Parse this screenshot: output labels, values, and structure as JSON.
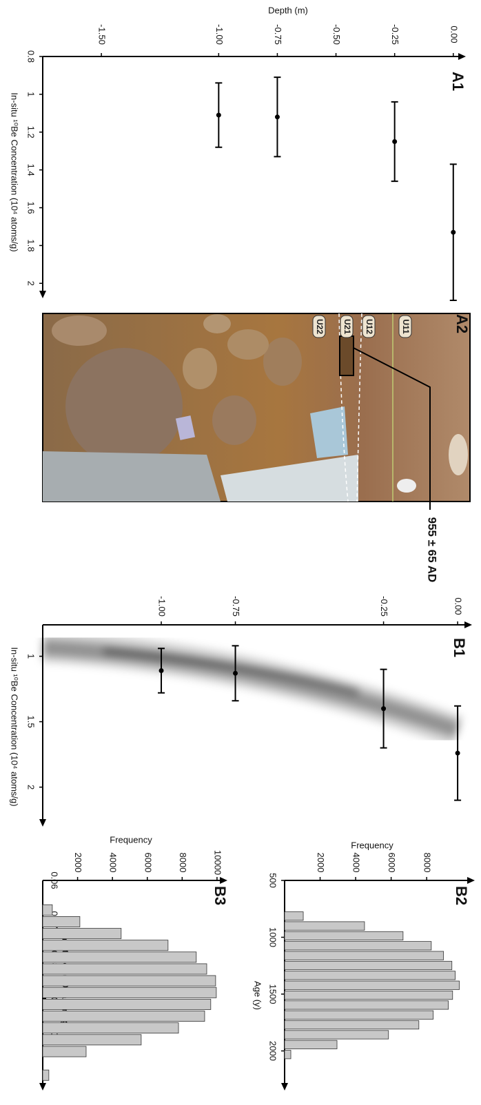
{
  "chart_data": [
    {
      "type": "scatter",
      "title": "A1",
      "xlabel": "In-situ ¹⁰Be Concentration (10⁴ atoms/g)",
      "ylabel": "Depth (m)",
      "x": [
        1.73,
        1.25,
        1.12,
        1.11
      ],
      "xerr": [
        0.36,
        0.21,
        0.21,
        0.17
      ],
      "y": [
        0,
        -0.25,
        -0.75,
        -1
      ],
      "color": "#000000",
      "xlim": [
        0.8,
        2.05
      ],
      "xticks": [
        0.8,
        1,
        1.2,
        1.4,
        1.6,
        1.8,
        2
      ],
      "ylim": [
        -1.75,
        0.03
      ],
      "yticks": [
        {
          "value": 0,
          "label": "0.00"
        },
        -0.25,
        {
          "value": -0.5,
          "label": "-0.50"
        },
        -0.75,
        {
          "value": -1,
          "label": "-1.00"
        },
        {
          "value": -1.5,
          "label": "-1.50"
        }
      ]
    },
    {
      "type": "scatter",
      "title": "B1",
      "xlabel": "In-situ ¹⁰Be Concentration (10⁴ atoms/g)",
      "x": [
        1.74,
        1.4,
        1.13,
        1.11
      ],
      "xerr": [
        0.36,
        0.3,
        0.21,
        0.17
      ],
      "y": [
        0,
        -0.25,
        -0.75,
        -1
      ],
      "color": "#000000",
      "xlim": [
        0.76,
        2.26
      ],
      "xticks": [
        1,
        1.5,
        2
      ],
      "ylim": [
        -1.4,
        0.03
      ],
      "yticks": [
        {
          "value": 0,
          "label": "0.00"
        },
        -0.25,
        -0.75,
        {
          "value": -1,
          "label": "-1.00"
        }
      ]
    },
    {
      "type": "histogram",
      "title": "B2",
      "xlabel": "Age (y)",
      "ylabel": "Frequency",
      "bins": [
        770,
        857,
        944,
        1031,
        1118,
        1205,
        1292,
        1379,
        1466,
        1553,
        1640,
        1727,
        1814,
        1901,
        1988,
        2075
      ],
      "values": [
        1050,
        4500,
        6670,
        8260,
        8950,
        9420,
        9610,
        9840,
        9460,
        9220,
        8370,
        7560,
        5850,
        2950,
        350
      ],
      "color": "#c8c8c8",
      "xlim": [
        500,
        2300
      ],
      "xticks": [
        500,
        1000,
        1500,
        2000
      ],
      "ylim": [
        0,
        10400
      ],
      "yticks": [
        2000,
        4000,
        6000,
        8000
      ]
    },
    {
      "type": "histogram",
      "title": "B3",
      "xlabel": "Inheritance (10⁵ atoms/g)",
      "ylabel": "Frequency",
      "bins": [
        0.066,
        0.069,
        0.072,
        0.075,
        0.078,
        0.081,
        0.084,
        0.087,
        0.09,
        0.093,
        0.096,
        0.099,
        0.102,
        0.105,
        0.108,
        0.111
      ],
      "values": [
        550,
        2130,
        4500,
        7190,
        8810,
        9410,
        9920,
        9960,
        9640,
        9290,
        7790,
        5650,
        2490,
        0,
        350
      ],
      "color": "#c8c8c8",
      "xlim": [
        0.06,
        0.112
      ],
      "xticks": [
        0.06,
        0.07,
        0.08,
        0.09,
        0.1
      ],
      "ylim": [
        0,
        10280
      ],
      "yticks": [
        2000,
        4000,
        6000,
        8000,
        10000
      ]
    }
  ],
  "photo": {
    "label": "A2",
    "units": [
      "U11",
      "U12",
      "U21",
      "U22"
    ],
    "annotation": "955 ± 65 AD"
  }
}
